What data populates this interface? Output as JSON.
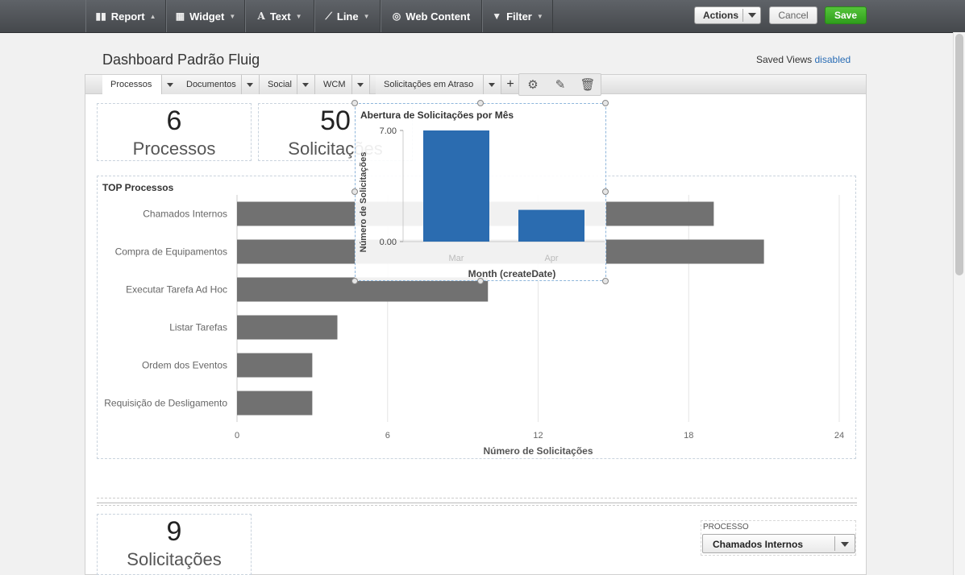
{
  "toolbar": {
    "report": "Report",
    "widget": "Widget",
    "text": "Text",
    "line": "Line",
    "web_content": "Web Content",
    "filter": "Filter",
    "actions": "Actions",
    "cancel": "Cancel",
    "save": "Save"
  },
  "header": {
    "title": "Dashboard Padrão Fluig",
    "saved_views_label": "Saved Views",
    "saved_views_link": "disabled"
  },
  "tabs": [
    {
      "label": "Processos"
    },
    {
      "label": "Documentos"
    },
    {
      "label": "Social"
    },
    {
      "label": "WCM"
    },
    {
      "label": "Solicitações em Atraso"
    }
  ],
  "kpis": [
    {
      "value": "6",
      "label": "Processos"
    },
    {
      "value": "50",
      "label": "Solicitações"
    },
    {
      "value": "9",
      "label": "Solicitações"
    }
  ],
  "filter": {
    "label": "PROCESSO",
    "selected": "Chamados Internos"
  },
  "colors": {
    "bar_gray": "#717171",
    "bar_blue": "#2b6cb0",
    "save_green": "#3aaa25"
  },
  "chart_data": [
    {
      "type": "bar",
      "orientation": "horizontal",
      "title": "TOP Processos",
      "categories": [
        "Chamados Internos",
        "Compra de Equipamentos",
        "Executar Tarefa Ad Hoc",
        "Listar Tarefas",
        "Ordem dos Eventos",
        "Requisição de Desligamento"
      ],
      "values": [
        19,
        21,
        10,
        4,
        3,
        3
      ],
      "xlabel": "Número de Solicitações",
      "ylabel": "",
      "xlim": [
        0,
        24
      ],
      "xticks": [
        0,
        6,
        12,
        18,
        24
      ],
      "grid": true
    },
    {
      "type": "bar",
      "title": "Abertura de Solicitações por Mês",
      "categories": [
        "Mar",
        "Apr"
      ],
      "values": [
        7,
        2
      ],
      "xlabel": "Month (createDate)",
      "ylabel": "Número de Solicitações",
      "ylim": [
        0,
        7
      ],
      "yticks": [
        "0.00",
        "7.00"
      ]
    }
  ]
}
